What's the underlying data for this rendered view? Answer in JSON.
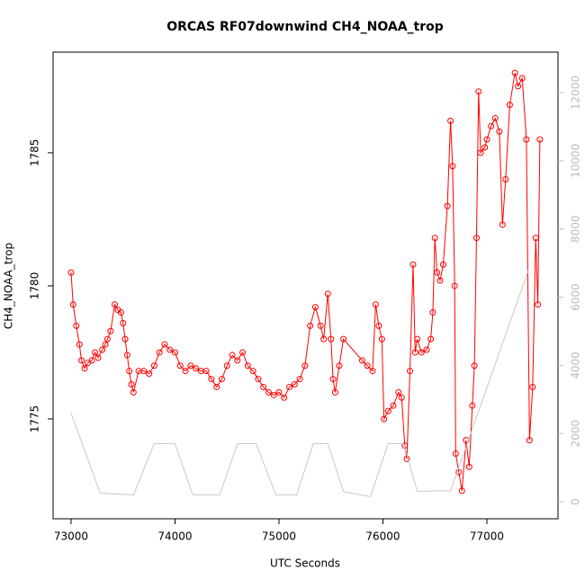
{
  "chart_data": {
    "type": "line",
    "title": "ORCAS RF07downwind CH4_NOAA_trop",
    "x_label": "UTC Seconds",
    "y_label": "CH4_NOAA_trop",
    "xlim": [
      72827,
      77684
    ],
    "xticks": [
      73000,
      74000,
      75000,
      76000,
      77000
    ],
    "ylim": [
      1771.25,
      1788.78
    ],
    "yticks": [
      1775,
      1780,
      1785
    ],
    "y2lim": [
      -501,
      13187
    ],
    "y2ticks": [
      0,
      2000,
      4000,
      6000,
      8000,
      10000,
      12000
    ],
    "series": [
      {
        "color": "#ff0000",
        "marker": "circle",
        "x": [
          73000,
          73020,
          73050,
          73080,
          73100,
          73130,
          73160,
          73200,
          73230,
          73260,
          73300,
          73330,
          73350,
          73380,
          73420,
          73450,
          73480,
          73500,
          73520,
          73540,
          73560,
          73580,
          73600,
          73650,
          73700,
          73750,
          73800,
          73850,
          73900,
          73950,
          74000,
          74050,
          74100,
          74150,
          74200,
          74250,
          74300,
          74350,
          74400,
          74450,
          74500,
          74550,
          74600,
          74650,
          74700,
          74750,
          74800,
          74850,
          74900,
          74950,
          75000,
          75050,
          75100,
          75150,
          75200,
          75250,
          75300,
          75350,
          75400,
          75430,
          75470,
          75500,
          75520,
          75540,
          75580,
          75620,
          75800,
          75850,
          75900,
          75930,
          75960,
          75990,
          76010,
          76050,
          76100,
          76150,
          76180,
          76210,
          76230,
          76260,
          76290,
          76310,
          76330,
          76370,
          76420,
          76460,
          76480,
          76500,
          76520,
          76550,
          76580,
          76620,
          76650,
          76670,
          76690,
          76700,
          76730,
          76760,
          76800,
          76830,
          76860,
          76880,
          76900,
          76920,
          76940,
          76980,
          77000,
          77040,
          77080,
          77120,
          77150,
          77180,
          77220,
          77270,
          77300,
          77340,
          77380,
          77410,
          77440,
          77470,
          77490,
          77510
        ],
        "values": [
          1780.5,
          1779.3,
          1778.5,
          1777.8,
          1777.2,
          1776.9,
          1777.1,
          1777.2,
          1777.5,
          1777.3,
          1777.6,
          1777.8,
          1778,
          1778.3,
          1779.3,
          1779.1,
          1779,
          1778.6,
          1778,
          1777.4,
          1776.8,
          1776.3,
          1776,
          1776.8,
          1776.8,
          1776.7,
          1777,
          1777.5,
          1777.8,
          1777.6,
          1777.5,
          1777,
          1776.8,
          1777,
          1776.9,
          1776.8,
          1776.8,
          1776.5,
          1776.2,
          1776.5,
          1777,
          1777.4,
          1777.2,
          1777.5,
          1777,
          1776.8,
          1776.5,
          1776.2,
          1776,
          1775.9,
          1776,
          1775.8,
          1776.2,
          1776.3,
          1776.5,
          1777,
          1778.5,
          1779.2,
          1778.5,
          1778,
          1779.7,
          1778,
          1776.5,
          1776,
          1777,
          1778,
          1777.2,
          1777,
          1776.8,
          1779.3,
          1778.5,
          1778,
          1775,
          1775.3,
          1775.5,
          1776,
          1775.8,
          1774,
          1773.5,
          1776.8,
          1780.8,
          1777.5,
          1778,
          1777.5,
          1777.6,
          1778,
          1779,
          1781.8,
          1780.5,
          1780.2,
          1780.8,
          1783,
          1786.2,
          1784.5,
          1780,
          1773.7,
          1773,
          1772.3,
          1774.2,
          1773.2,
          1775.5,
          1777,
          1781.8,
          1787.3,
          1785,
          1785.2,
          1785.5,
          1786,
          1786.3,
          1785.8,
          1782.3,
          1784,
          1786.8,
          1788,
          1787.5,
          1787.8,
          1785.5,
          1774.2,
          1776.2,
          1781.8,
          1779.3,
          1785.5
        ]
      },
      {
        "color": "#c8c8c8",
        "axis": "y2",
        "x": [
          73000,
          73280,
          73600,
          73800,
          74000,
          74170,
          74430,
          74600,
          74780,
          74970,
          75170,
          75330,
          75470,
          75620,
          75880,
          76050,
          76200,
          76330,
          76500,
          76650,
          77400
        ],
        "values": [
          2600,
          250,
          200,
          1700,
          1700,
          200,
          200,
          1700,
          1700,
          200,
          200,
          1700,
          1700,
          300,
          150,
          1700,
          1700,
          300,
          320,
          320,
          6800
        ]
      }
    ]
  }
}
